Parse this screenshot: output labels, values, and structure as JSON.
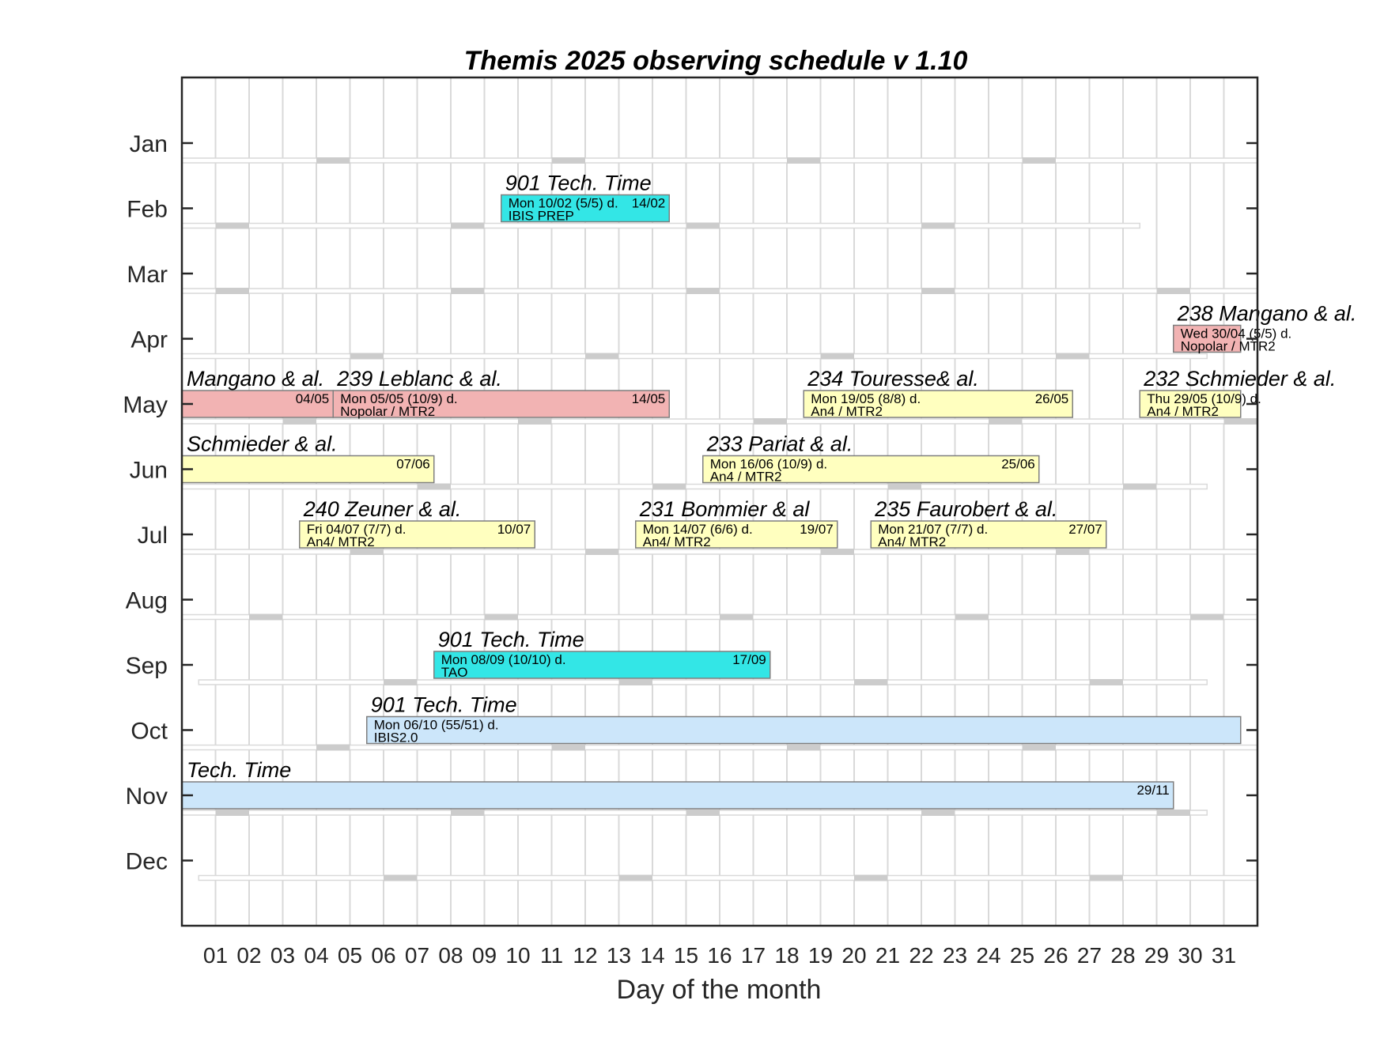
{
  "chart_data": {
    "type": "gantt",
    "title": "Themis 2025 observing schedule v 1.10",
    "xlabel": "Day of the month",
    "ylabel": "",
    "xlim": [
      0,
      32
    ],
    "grid": true,
    "months": [
      "Jan",
      "Feb",
      "Mar",
      "Apr",
      "May",
      "Jun",
      "Jul",
      "Aug",
      "Sep",
      "Oct",
      "Nov",
      "Dec"
    ],
    "days": [
      "01",
      "02",
      "03",
      "04",
      "05",
      "06",
      "07",
      "08",
      "09",
      "10",
      "11",
      "12",
      "13",
      "14",
      "15",
      "16",
      "17",
      "18",
      "19",
      "20",
      "21",
      "22",
      "23",
      "24",
      "25",
      "26",
      "27",
      "28",
      "29",
      "30",
      "31"
    ],
    "month_lengths": [
      31,
      28,
      31,
      30,
      31,
      30,
      31,
      31,
      30,
      31,
      30,
      31
    ],
    "month_start_weekday": [
      2,
      5,
      5,
      1,
      3,
      6,
      1,
      4,
      0,
      2,
      5,
      0
    ],
    "colors": {
      "technical": "#33e6e6",
      "technical_long": "#cce6fa",
      "polar_program": "#f2b3b3",
      "standard_program": "#ffffbf",
      "grid": "#d9d9d9",
      "weekend": "#cccccc",
      "border": "#7f7f7f"
    },
    "bars": [
      {
        "month": "Feb",
        "start": 10,
        "end": 14,
        "color": "technical",
        "title": "901  Tech. Time",
        "line1": "Mon 10/02 (5/5) d.",
        "line2": "IBIS PREP",
        "end_label": "14/02"
      },
      {
        "month": "Apr",
        "start": 30,
        "end": 31,
        "color": "polar_program",
        "title": "238  Mangano & al.",
        "line1": "Wed 30/04 (5/5) d.",
        "line2": "Nopolar / MTR2",
        "end_label": ""
      },
      {
        "month": "May",
        "start": 0,
        "end": 4,
        "color": "polar_program",
        "title": "Mangano & al.",
        "line1": "",
        "line2": "",
        "end_label": "04/05"
      },
      {
        "month": "May",
        "start": 5,
        "end": 14,
        "color": "polar_program",
        "title": "239  Leblanc & al.",
        "line1": "Mon 05/05 (10/9) d.",
        "line2": "Nopolar / MTR2",
        "end_label": "14/05"
      },
      {
        "month": "May",
        "start": 19,
        "end": 26,
        "color": "standard_program",
        "title": "234  Touresse& al.",
        "line1": "Mon 19/05 (8/8) d.",
        "line2": "An4 / MTR2",
        "end_label": "26/05"
      },
      {
        "month": "May",
        "start": 29,
        "end": 31,
        "color": "standard_program",
        "title": "232   Schmieder & al.",
        "line1": "Thu 29/05 (10/9) d.",
        "line2": "An4 / MTR2",
        "end_label": ""
      },
      {
        "month": "Jun",
        "start": 0,
        "end": 7,
        "color": "standard_program",
        "title": "Schmieder & al.",
        "line1": "",
        "line2": "",
        "end_label": "07/06"
      },
      {
        "month": "Jun",
        "start": 16,
        "end": 25,
        "color": "standard_program",
        "title": "233  Pariat  & al.",
        "line1": "Mon 16/06 (10/9) d.",
        "line2": "An4 / MTR2",
        "end_label": "25/06"
      },
      {
        "month": "Jul",
        "start": 4,
        "end": 10,
        "color": "standard_program",
        "title": "240  Zeuner & al.",
        "line1": "Fri 04/07 (7/7) d.",
        "line2": "An4/ MTR2",
        "end_label": "10/07"
      },
      {
        "month": "Jul",
        "start": 14,
        "end": 19,
        "color": "standard_program",
        "title": "231  Bommier & al",
        "line1": "Mon 14/07 (6/6) d.",
        "line2": "An4/ MTR2",
        "end_label": "19/07"
      },
      {
        "month": "Jul",
        "start": 21,
        "end": 27,
        "color": "standard_program",
        "title": "235  Faurobert & al.",
        "line1": "Mon 21/07 (7/7) d.",
        "line2": "An4/ MTR2",
        "end_label": "27/07"
      },
      {
        "month": "Sep",
        "start": 8,
        "end": 17,
        "color": "technical",
        "title": "901  Tech. Time",
        "line1": "Mon 08/09 (10/10) d.",
        "line2": "TAO",
        "end_label": "17/09"
      },
      {
        "month": "Oct",
        "start": 6,
        "end": 31,
        "color": "technical_long",
        "title": "901  Tech. Time",
        "line1": "Mon 06/10 (55/51) d.",
        "line2": "IBIS2.0",
        "end_label": ""
      },
      {
        "month": "Nov",
        "start": 0,
        "end": 29,
        "color": "technical_long",
        "title": "Tech. Time",
        "line1": "",
        "line2": "",
        "end_label": "29/11"
      }
    ]
  }
}
